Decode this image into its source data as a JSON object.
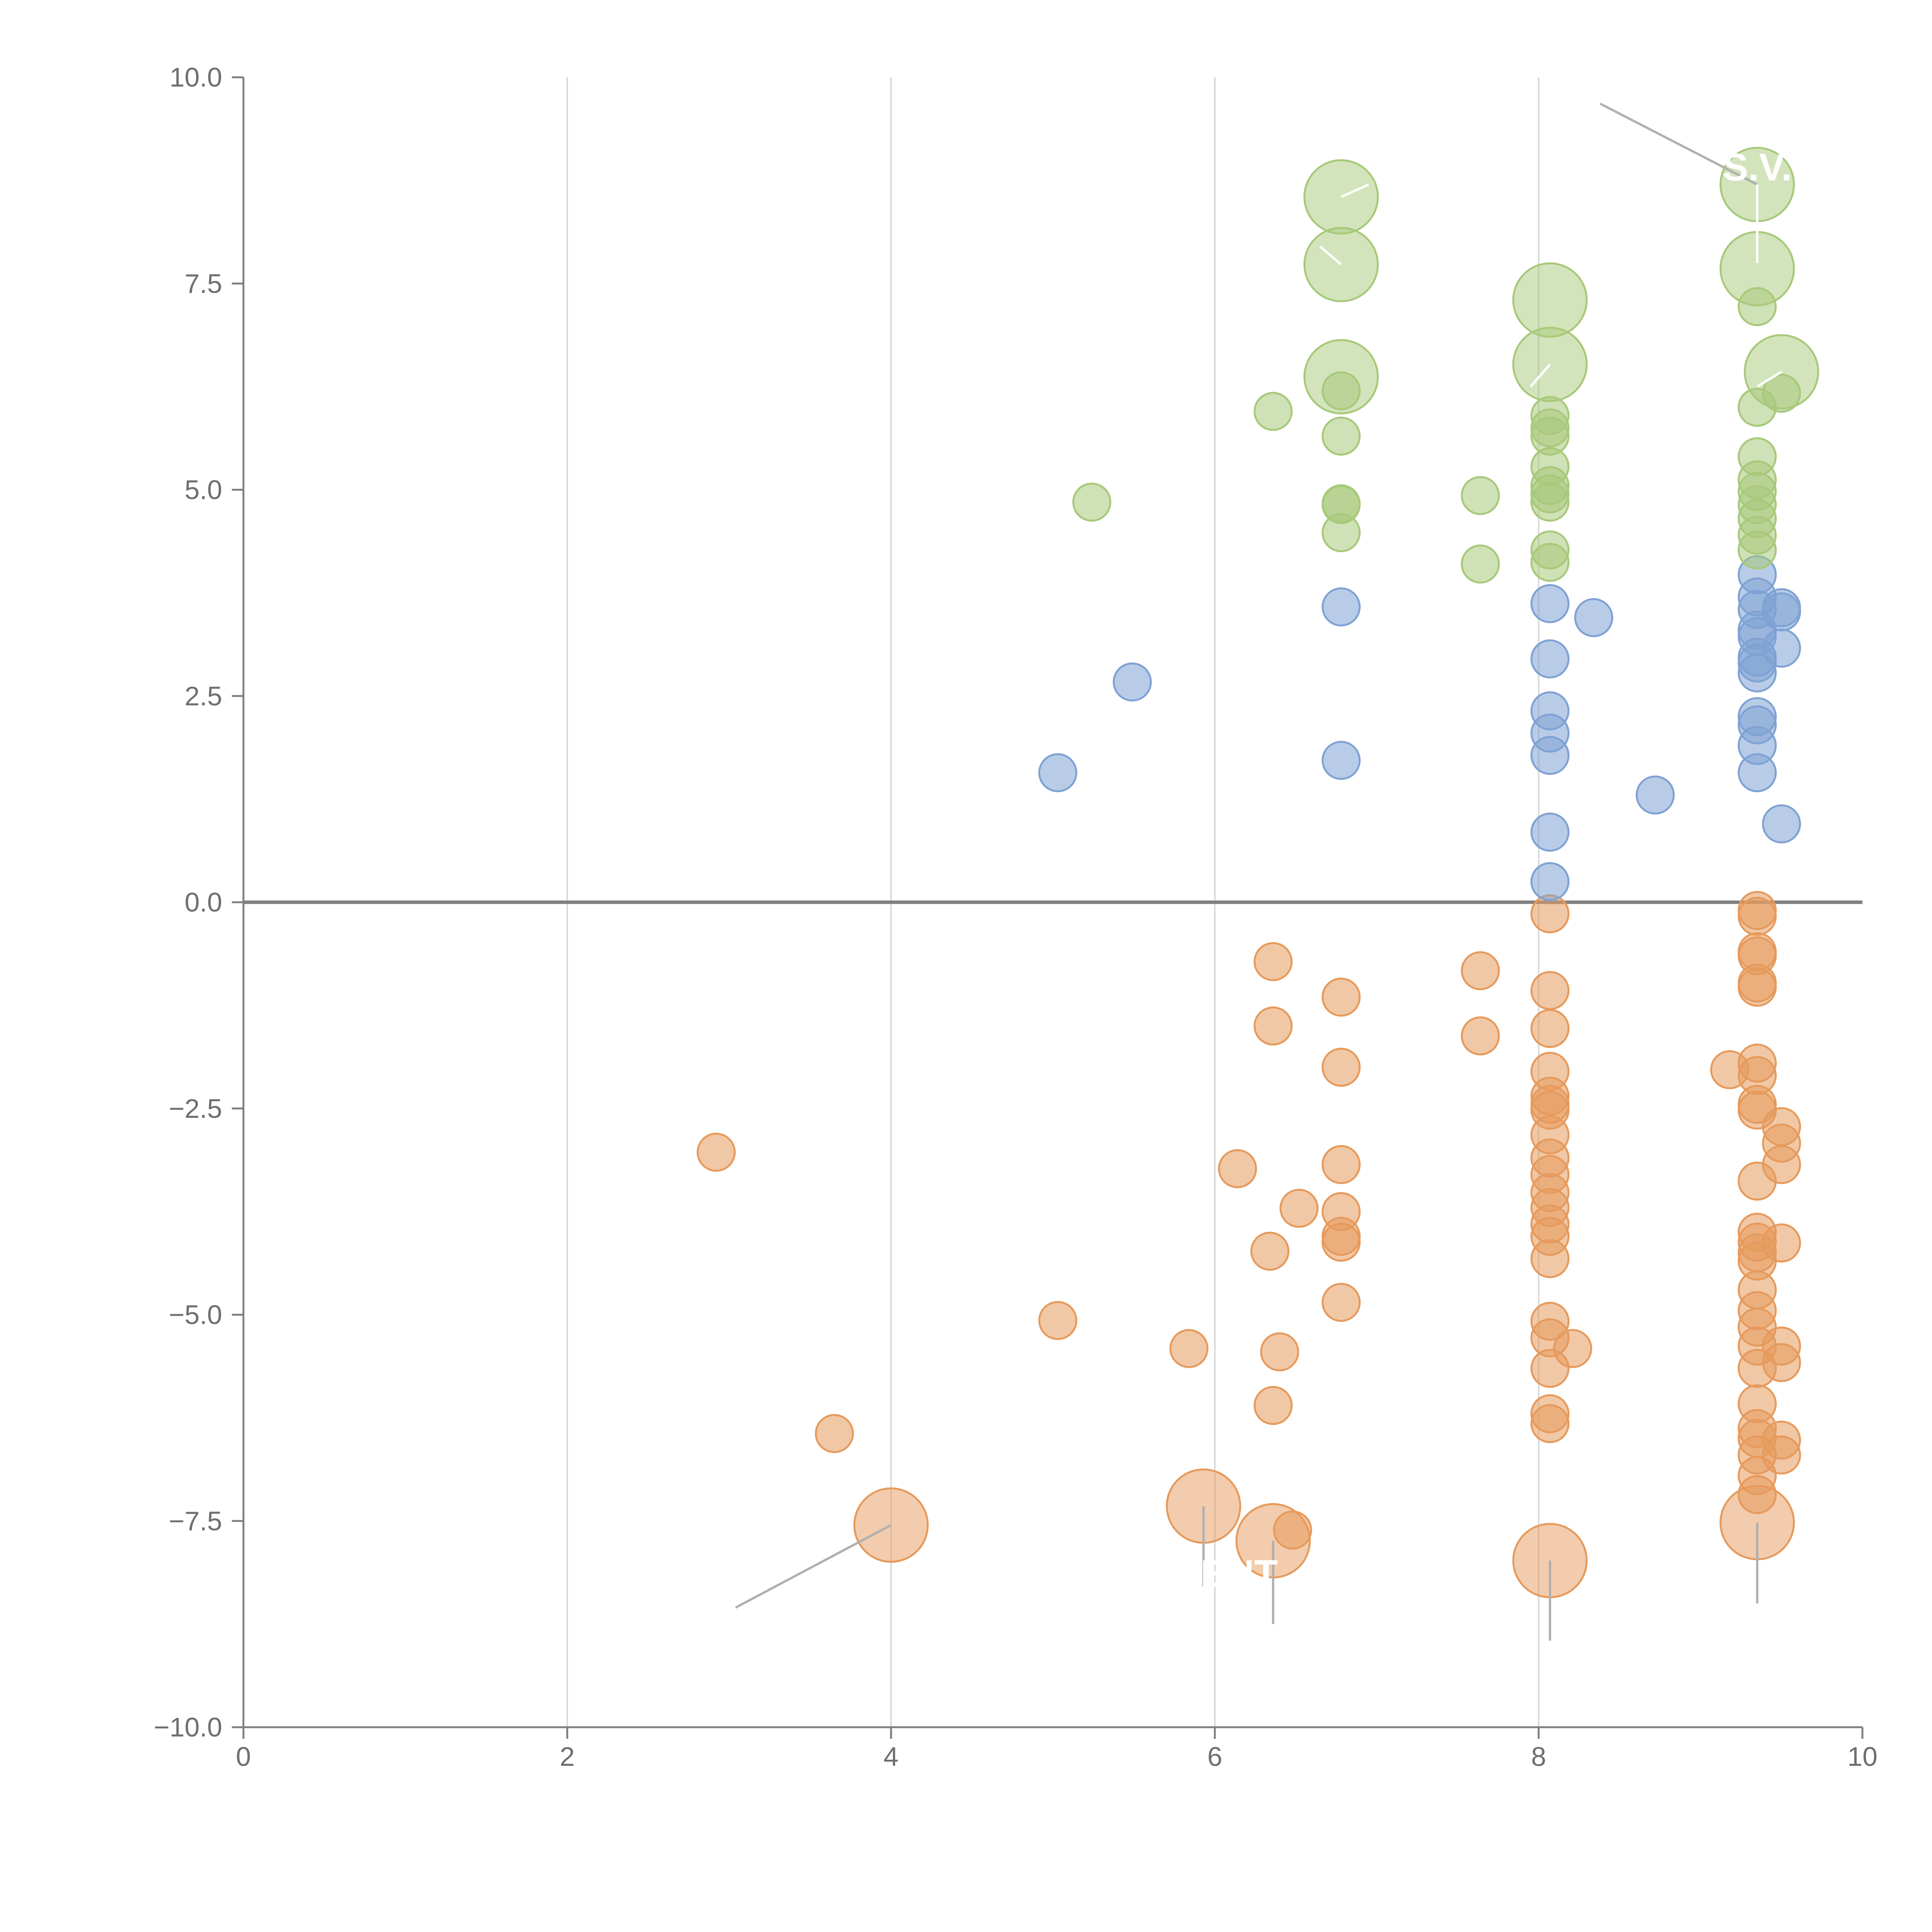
{
  "chart_data": {
    "type": "scatter",
    "title": "",
    "xlabel": "",
    "ylabel": "",
    "xlim": [
      0,
      10
    ],
    "ylim": [
      -10,
      10
    ],
    "x_ticks": [
      "0",
      "2",
      "4",
      "6",
      "8",
      "10"
    ],
    "y_ticks": [
      "10.0",
      "7.5",
      "5.0",
      "2.5",
      "0.0",
      "−2.5",
      "−5.0",
      "−7.5",
      "−10.0"
    ],
    "grid": "vertical",
    "zero_line": true,
    "series": [
      {
        "name": "orange",
        "color": "#e69a5c",
        "points": [
          [
            2.92,
            -3.03
          ],
          [
            3.65,
            -6.44
          ],
          [
            5.03,
            -5.07
          ],
          [
            5.84,
            -5.41
          ],
          [
            6.14,
            -3.23
          ],
          [
            6.34,
            -4.23
          ],
          [
            6.36,
            -0.72
          ],
          [
            6.36,
            -1.5
          ],
          [
            6.36,
            -6.1
          ],
          [
            6.4,
            -5.45
          ],
          [
            6.52,
            -3.71
          ],
          [
            6.48,
            -7.61
          ],
          [
            6.78,
            -1.15
          ],
          [
            6.78,
            -2.0
          ],
          [
            6.78,
            -3.18
          ],
          [
            6.78,
            -3.75
          ],
          [
            6.78,
            -4.05
          ],
          [
            6.78,
            -4.12
          ],
          [
            6.78,
            -4.85
          ],
          [
            7.64,
            -0.83
          ],
          [
            7.64,
            -1.62
          ],
          [
            8.07,
            -0.14
          ],
          [
            8.07,
            -1.07
          ],
          [
            8.07,
            -1.53
          ],
          [
            8.07,
            -2.05
          ],
          [
            8.07,
            -2.35
          ],
          [
            8.07,
            -2.45
          ],
          [
            8.07,
            -2.52
          ],
          [
            8.07,
            -2.82
          ],
          [
            8.07,
            -3.1
          ],
          [
            8.07,
            -3.3
          ],
          [
            8.07,
            -3.52
          ],
          [
            8.07,
            -3.7
          ],
          [
            8.07,
            -3.9
          ],
          [
            8.07,
            -4.05
          ],
          [
            8.07,
            -4.32
          ],
          [
            8.07,
            -5.08
          ],
          [
            8.07,
            -5.28
          ],
          [
            8.07,
            -5.65
          ],
          [
            8.07,
            -6.2
          ],
          [
            8.07,
            -6.32
          ],
          [
            8.21,
            -5.41
          ],
          [
            9.18,
            -2.03
          ],
          [
            9.35,
            -0.1
          ],
          [
            9.35,
            -0.17
          ],
          [
            9.35,
            -0.6
          ],
          [
            9.35,
            -0.65
          ],
          [
            9.35,
            -0.98
          ],
          [
            9.35,
            -1.03
          ],
          [
            9.35,
            -1.95
          ],
          [
            9.35,
            -2.1
          ],
          [
            9.35,
            -2.45
          ],
          [
            9.35,
            -2.52
          ],
          [
            9.35,
            -3.38
          ],
          [
            9.35,
            -4.0
          ],
          [
            9.35,
            -4.12
          ],
          [
            9.35,
            -4.25
          ],
          [
            9.35,
            -4.35
          ],
          [
            9.35,
            -4.7
          ],
          [
            9.35,
            -4.95
          ],
          [
            9.35,
            -5.15
          ],
          [
            9.35,
            -5.38
          ],
          [
            9.35,
            -5.65
          ],
          [
            9.35,
            -6.08
          ],
          [
            9.35,
            -6.38
          ],
          [
            9.35,
            -6.5
          ],
          [
            9.35,
            -6.7
          ],
          [
            9.35,
            -6.95
          ],
          [
            9.35,
            -7.18
          ],
          [
            9.5,
            -2.72
          ],
          [
            9.5,
            -2.92
          ],
          [
            9.5,
            -3.18
          ],
          [
            9.5,
            -4.13
          ],
          [
            9.5,
            -5.38
          ],
          [
            9.5,
            -5.58
          ],
          [
            9.5,
            -6.52
          ],
          [
            9.5,
            -6.7
          ]
        ],
        "large_points": [
          [
            4.0,
            -7.55
          ],
          [
            5.93,
            -7.32
          ],
          [
            6.36,
            -7.74
          ],
          [
            8.07,
            -7.98
          ],
          [
            9.35,
            -7.52
          ]
        ]
      },
      {
        "name": "blue",
        "color": "#7fa2d4",
        "points": [
          [
            5.03,
            1.57
          ],
          [
            5.49,
            2.67
          ],
          [
            6.78,
            3.58
          ],
          [
            6.78,
            1.72
          ],
          [
            8.07,
            3.62
          ],
          [
            8.07,
            2.95
          ],
          [
            8.07,
            2.32
          ],
          [
            8.07,
            2.05
          ],
          [
            8.07,
            1.78
          ],
          [
            8.07,
            0.85
          ],
          [
            8.07,
            0.25
          ],
          [
            8.34,
            3.45
          ],
          [
            8.72,
            1.3
          ],
          [
            9.35,
            3.97
          ],
          [
            9.35,
            3.7
          ],
          [
            9.35,
            3.55
          ],
          [
            9.35,
            3.3
          ],
          [
            9.35,
            3.22
          ],
          [
            9.35,
            2.97
          ],
          [
            9.35,
            2.9
          ],
          [
            9.35,
            2.78
          ],
          [
            9.35,
            2.25
          ],
          [
            9.35,
            2.15
          ],
          [
            9.35,
            1.9
          ],
          [
            9.35,
            1.57
          ],
          [
            9.5,
            3.57
          ],
          [
            9.5,
            3.52
          ],
          [
            9.5,
            3.08
          ],
          [
            9.5,
            0.95
          ]
        ]
      },
      {
        "name": "green",
        "color": "#a8c97a",
        "points": [
          [
            5.24,
            4.85
          ],
          [
            6.36,
            5.95
          ],
          [
            6.78,
            6.2
          ],
          [
            6.78,
            5.65
          ],
          [
            6.78,
            4.83
          ],
          [
            6.78,
            4.82
          ],
          [
            6.78,
            4.48
          ],
          [
            7.64,
            4.93
          ],
          [
            7.64,
            4.1
          ],
          [
            8.07,
            5.9
          ],
          [
            8.07,
            5.75
          ],
          [
            8.07,
            5.65
          ],
          [
            8.07,
            5.28
          ],
          [
            8.07,
            5.05
          ],
          [
            8.07,
            4.95
          ],
          [
            8.07,
            4.85
          ],
          [
            8.07,
            4.27
          ],
          [
            8.07,
            4.12
          ],
          [
            9.35,
            7.22
          ],
          [
            9.35,
            6.0
          ],
          [
            9.35,
            5.4
          ],
          [
            9.35,
            5.12
          ],
          [
            9.35,
            4.98
          ],
          [
            9.35,
            4.82
          ],
          [
            9.35,
            4.65
          ],
          [
            9.35,
            4.45
          ],
          [
            9.35,
            4.27
          ],
          [
            9.5,
            6.17
          ]
        ],
        "large_points": [
          [
            6.78,
            8.55
          ],
          [
            6.78,
            7.73
          ],
          [
            6.78,
            6.37
          ],
          [
            8.07,
            7.3
          ],
          [
            8.07,
            6.52
          ],
          [
            9.35,
            8.7
          ],
          [
            9.35,
            7.68
          ],
          [
            9.5,
            6.43
          ]
        ]
      }
    ],
    "annotations": [
      {
        "text": "S.V.",
        "x": 9.35,
        "y": 8.75,
        "color": "#ffffff"
      },
      {
        "text": "ENT",
        "x": 6.15,
        "y": -8.3,
        "color": "#ffffff"
      }
    ]
  }
}
